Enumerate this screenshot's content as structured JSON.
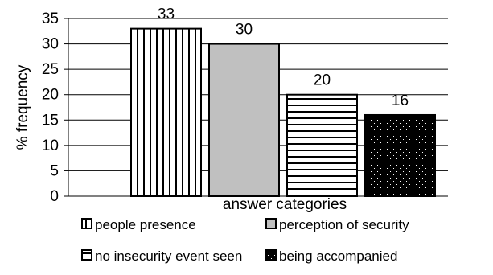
{
  "chart_data": {
    "type": "bar",
    "title": "",
    "xlabel": "answer categories",
    "ylabel": "% frequency",
    "ylim": [
      0,
      35
    ],
    "yticks": [
      "0",
      "5",
      "10",
      "15",
      "20",
      "25",
      "30",
      "35"
    ],
    "grid": true,
    "legend_position": "bottom",
    "series": [
      {
        "name": "people presence",
        "value": 33,
        "label": "33",
        "pattern": "vertical-stripes",
        "color": "#000000",
        "fill": "#ffffff"
      },
      {
        "name": "perception of security",
        "value": 30,
        "label": "30",
        "pattern": "solid",
        "color": "#000000",
        "fill": "#c0c0c0"
      },
      {
        "name": "no insecurity event seen",
        "value": 20,
        "label": "20",
        "pattern": "horizontal-stripes",
        "color": "#000000",
        "fill": "#ffffff"
      },
      {
        "name": "being accompanied",
        "value": 16,
        "label": "16",
        "pattern": "dots",
        "color": "#000000",
        "fill": "#000000"
      }
    ]
  }
}
